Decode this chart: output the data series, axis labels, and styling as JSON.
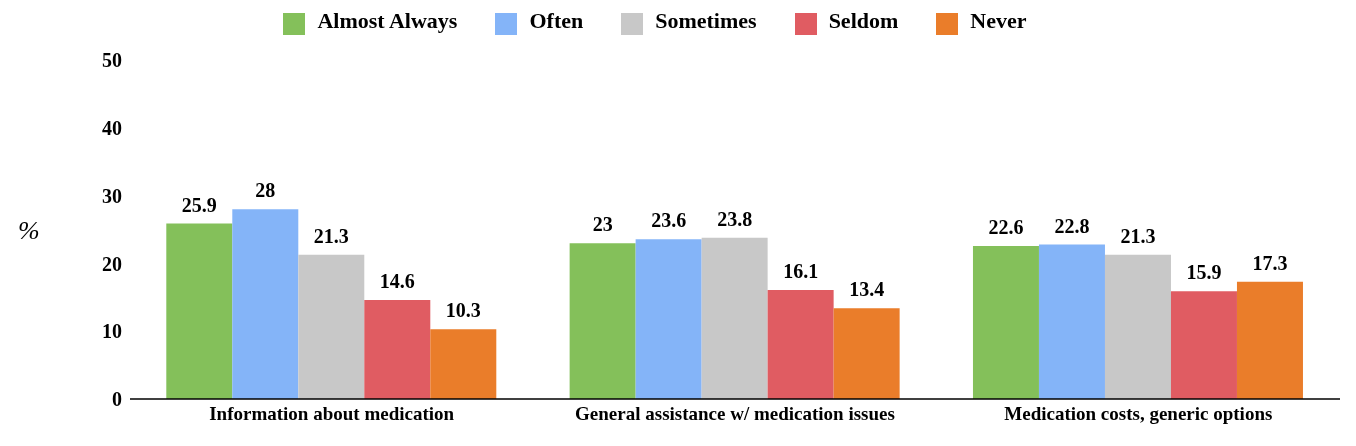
{
  "chart_data": {
    "type": "bar",
    "ylabel": "%",
    "categories": [
      "Information about medication",
      "General assistance w/ medication issues",
      "Medication costs, generic options"
    ],
    "series": [
      {
        "name": "Almost Always",
        "color": "#84c05a",
        "values": [
          25.9,
          23,
          22.6
        ]
      },
      {
        "name": "Often",
        "color": "#84b4f8",
        "values": [
          28,
          23.6,
          22.8
        ]
      },
      {
        "name": "Sometimes",
        "color": "#c8c8c8",
        "values": [
          21.3,
          23.8,
          21.3
        ]
      },
      {
        "name": "Seldom",
        "color": "#e05c62",
        "values": [
          14.6,
          16.1,
          15.9
        ]
      },
      {
        "name": "Never",
        "color": "#ea7d2a",
        "values": [
          10.3,
          13.4,
          17.3
        ]
      }
    ],
    "ylim": [
      0,
      50
    ],
    "yticks": [
      0,
      10,
      20,
      30,
      40,
      50
    ],
    "grid": false,
    "legend": "top",
    "data_labels": true
  }
}
